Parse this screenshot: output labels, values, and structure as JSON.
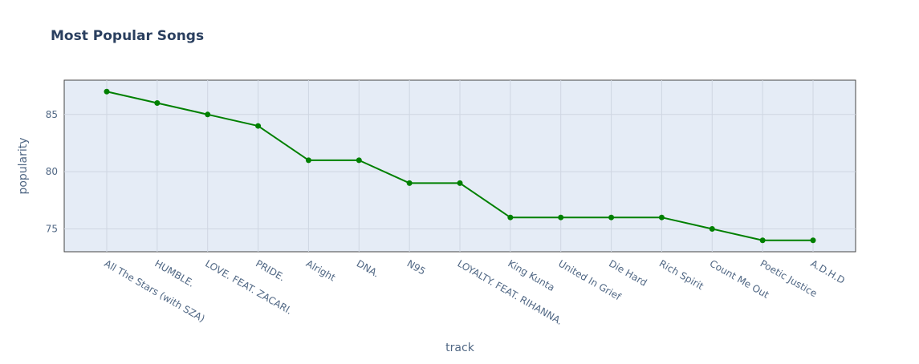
{
  "chart_data": {
    "type": "line",
    "title": "Most Popular Songs",
    "xlabel": "track",
    "ylabel": "popularity",
    "categories": [
      "All The Stars (with SZA)",
      "HUMBLE.",
      "LOVE. FEAT. ZACARI.",
      "PRIDE.",
      "Alright",
      "DNA.",
      "N95",
      "LOYALTY. FEAT. RIHANNA.",
      "King Kunta",
      "United In Grief",
      "Die Hard",
      "Rich Spirit",
      "Count Me Out",
      "Poetic Justice",
      "A.D.H.D"
    ],
    "series": [
      {
        "values": [
          87,
          86,
          85,
          84,
          81,
          81,
          79,
          79,
          76,
          76,
          76,
          76,
          75,
          74,
          74
        ],
        "color": "#008000"
      }
    ],
    "ylim": [
      73,
      88
    ],
    "yticks": [
      75,
      80,
      85
    ],
    "grid": true,
    "plot_bgcolor": "#e5ecf6",
    "grid_color": "#cfd6e2",
    "text_color": "#506784",
    "title_color": "#2a3f5f"
  }
}
